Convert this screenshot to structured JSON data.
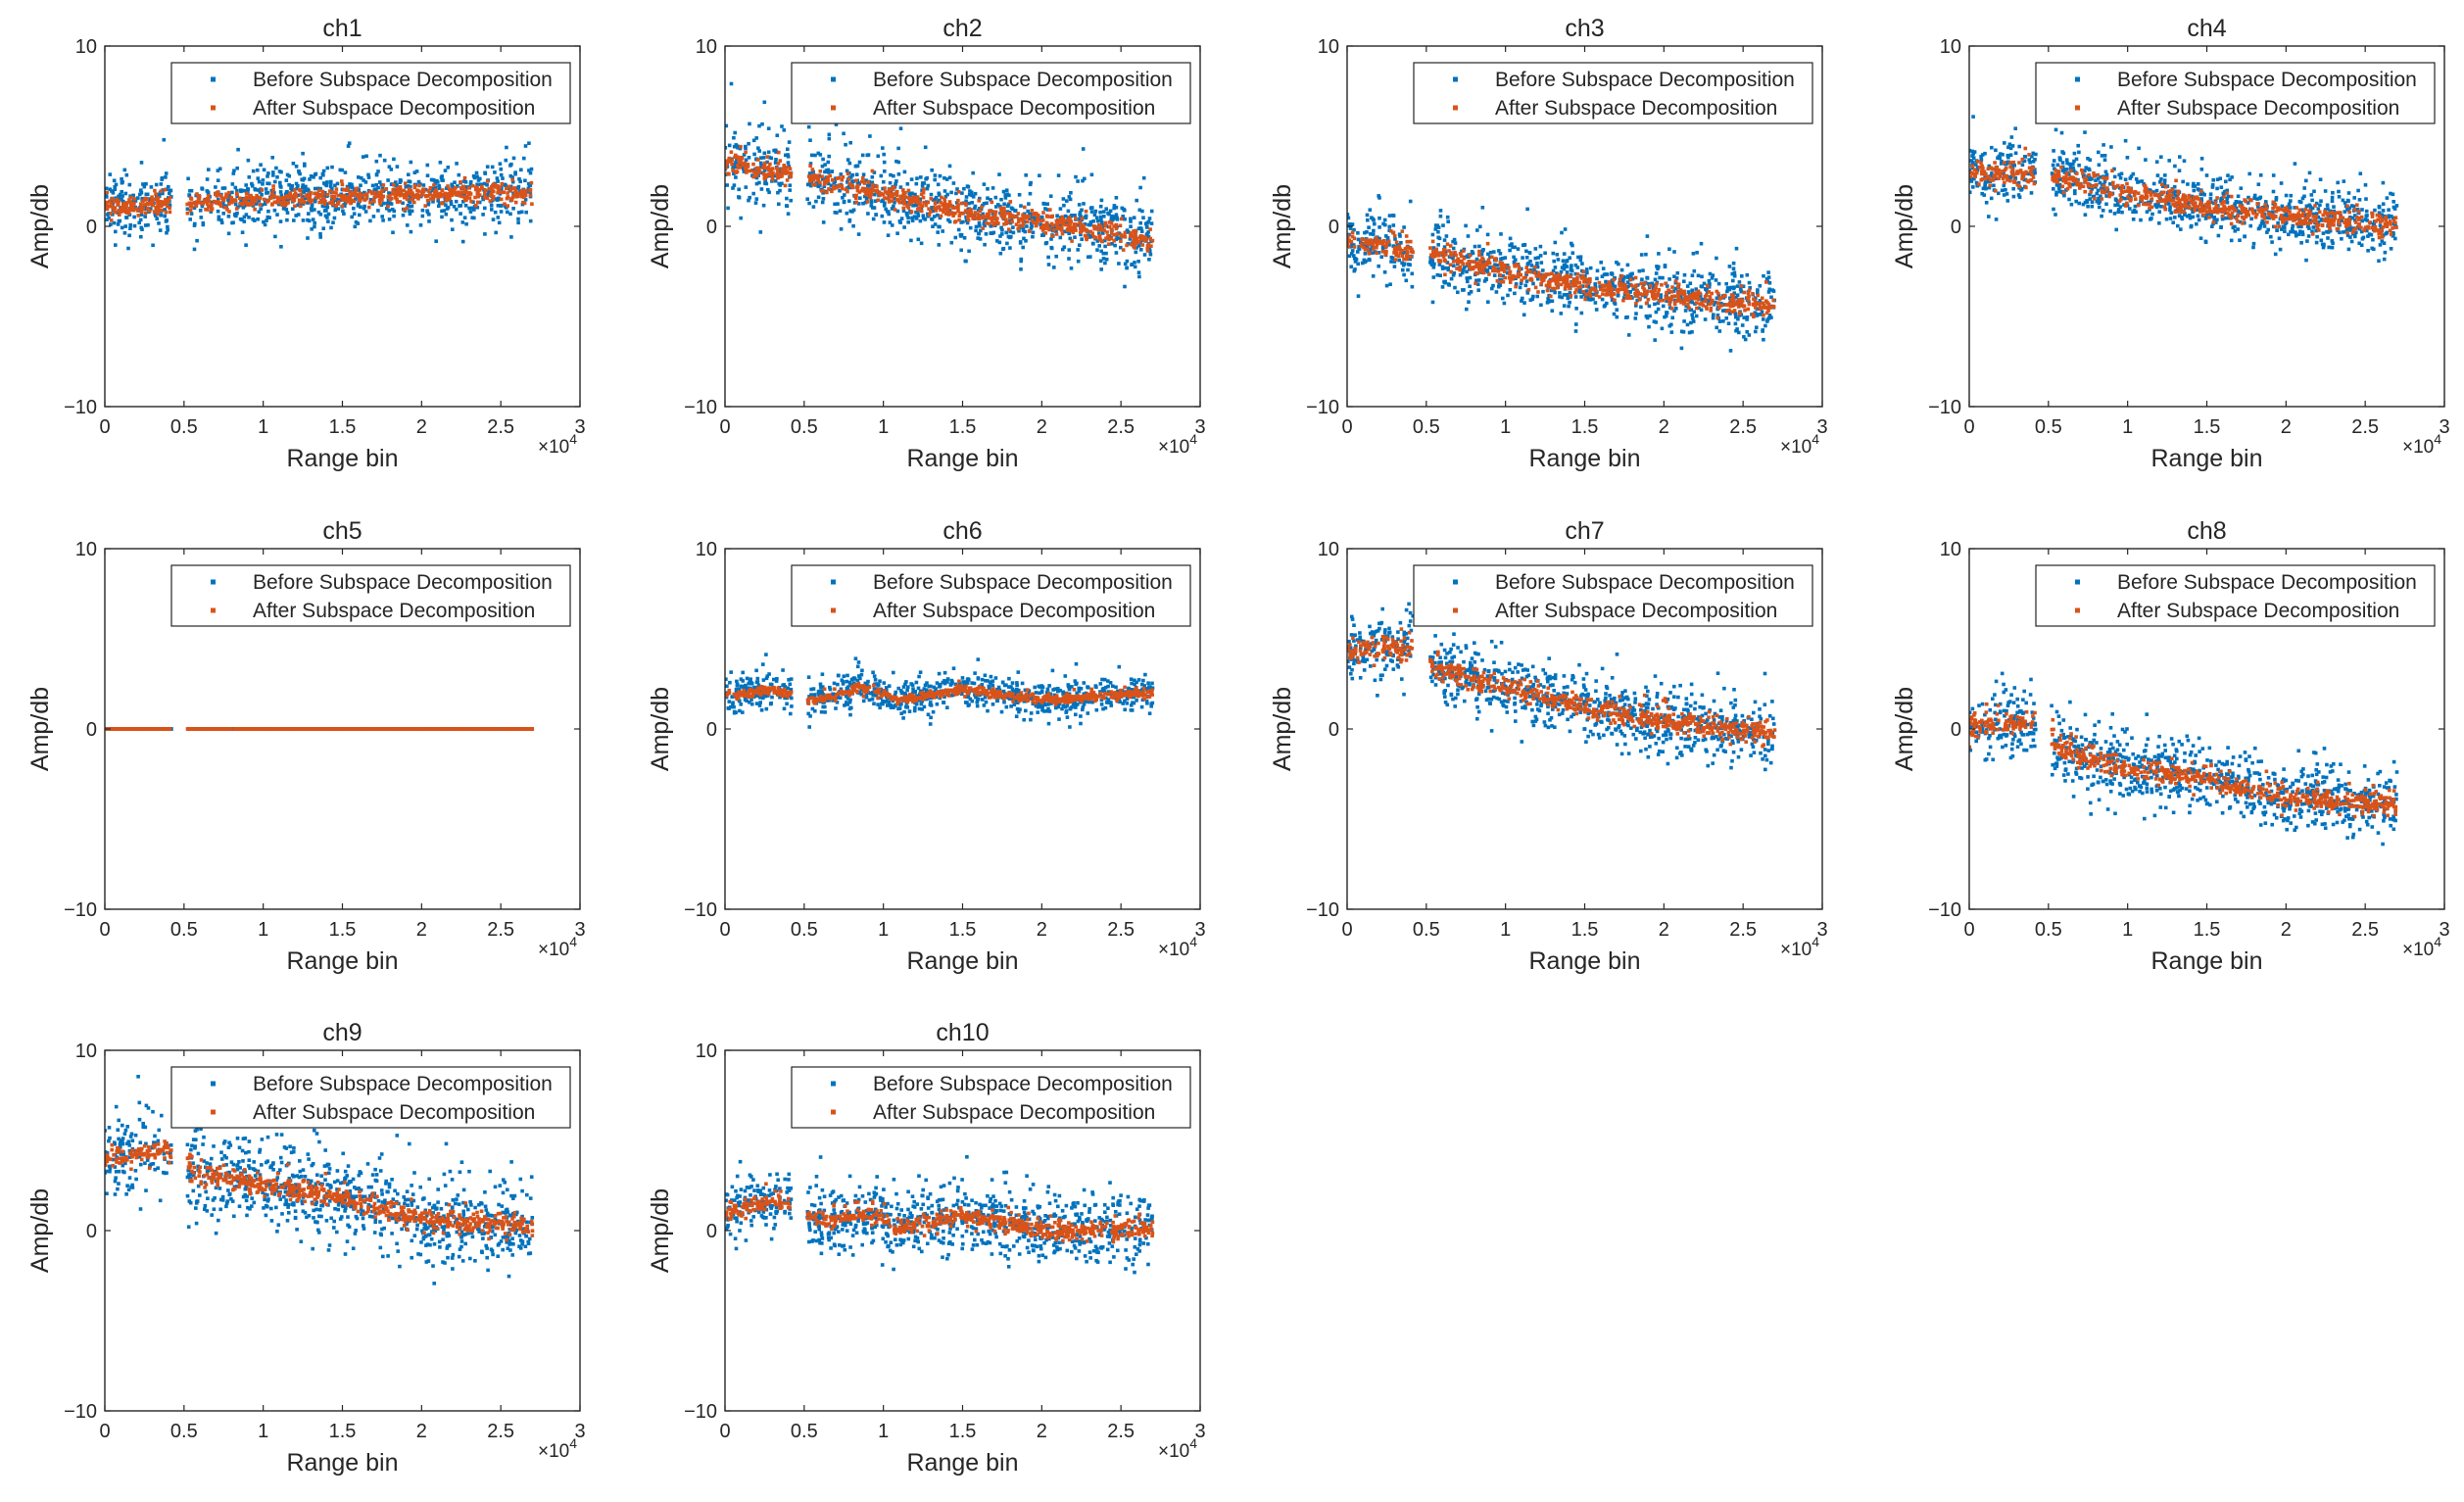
{
  "figure": {
    "background": "#ffffff",
    "axis_color": "#262626",
    "series_colors": [
      "#0072BD",
      "#D95319"
    ]
  },
  "chart_data": [
    {
      "type": "scatter",
      "title": "ch1",
      "xlabel": "Range bin",
      "ylabel": "Amp/db",
      "xlim": [
        0,
        30000
      ],
      "ylim": [
        -10,
        10
      ],
      "xticks": [
        0,
        5000,
        10000,
        15000,
        20000,
        25000,
        30000
      ],
      "xtick_labels": [
        "0",
        "0.5",
        "1",
        "1.5",
        "2",
        "2.5",
        "3"
      ],
      "x_exponent": "×10",
      "x_exponent_power": "4",
      "yticks": [
        -10,
        0,
        10
      ],
      "ytick_labels": [
        "−10",
        "0",
        "10"
      ],
      "grid": false,
      "legend_position": "top-right",
      "x_range": [
        0,
        27000
      ],
      "gap": [
        4200,
        5200
      ],
      "series": [
        {
          "name": "Before Subspace Decomposition",
          "trend": [
            [
              0,
              1.0
            ],
            [
              10000,
              1.5
            ],
            [
              20000,
              1.8
            ],
            [
              27000,
              1.8
            ]
          ],
          "spread": 1.0
        },
        {
          "name": "After Subspace Decomposition",
          "trend": [
            [
              0,
              1.0
            ],
            [
              10000,
              1.5
            ],
            [
              20000,
              1.8
            ],
            [
              27000,
              1.8
            ]
          ],
          "spread": 0.25
        }
      ]
    },
    {
      "type": "scatter",
      "title": "ch2",
      "xlabel": "Range bin",
      "ylabel": "Amp/db",
      "xlim": [
        0,
        30000
      ],
      "ylim": [
        -10,
        10
      ],
      "xticks": [
        0,
        5000,
        10000,
        15000,
        20000,
        25000,
        30000
      ],
      "xtick_labels": [
        "0",
        "0.5",
        "1",
        "1.5",
        "2",
        "2.5",
        "3"
      ],
      "x_exponent": "×10",
      "x_exponent_power": "4",
      "yticks": [
        -10,
        0,
        10
      ],
      "ytick_labels": [
        "−10",
        "0",
        "10"
      ],
      "grid": false,
      "legend_position": "top-right",
      "x_range": [
        0,
        27000
      ],
      "gap": [
        4200,
        5200
      ],
      "series": [
        {
          "name": "Before Subspace Decomposition",
          "trend": [
            [
              0,
              3.5
            ],
            [
              5000,
              2.8
            ],
            [
              10000,
              1.8
            ],
            [
              15000,
              0.8
            ],
            [
              20000,
              0.2
            ],
            [
              27000,
              -0.8
            ]
          ],
          "spread": 1.2
        },
        {
          "name": "After Subspace Decomposition",
          "trend": [
            [
              0,
              3.5
            ],
            [
              5000,
              2.8
            ],
            [
              10000,
              1.8
            ],
            [
              15000,
              0.8
            ],
            [
              20000,
              0.2
            ],
            [
              27000,
              -0.8
            ]
          ],
          "spread": 0.3
        }
      ]
    },
    {
      "type": "scatter",
      "title": "ch3",
      "xlabel": "Range bin",
      "ylabel": "Amp/db",
      "xlim": [
        0,
        30000
      ],
      "ylim": [
        -10,
        10
      ],
      "xticks": [
        0,
        5000,
        10000,
        15000,
        20000,
        25000,
        30000
      ],
      "xtick_labels": [
        "0",
        "0.5",
        "1",
        "1.5",
        "2",
        "2.5",
        "3"
      ],
      "x_exponent": "×10",
      "x_exponent_power": "4",
      "yticks": [
        -10,
        0,
        10
      ],
      "ytick_labels": [
        "−10",
        "0",
        "10"
      ],
      "grid": false,
      "legend_position": "top-right",
      "x_range": [
        0,
        27000
      ],
      "gap": [
        4200,
        5200
      ],
      "series": [
        {
          "name": "Before Subspace Decomposition",
          "trend": [
            [
              0,
              -0.8
            ],
            [
              5000,
              -1.5
            ],
            [
              10000,
              -2.5
            ],
            [
              15000,
              -3.3
            ],
            [
              20000,
              -3.8
            ],
            [
              27000,
              -4.5
            ]
          ],
          "spread": 1.1
        },
        {
          "name": "After Subspace Decomposition",
          "trend": [
            [
              0,
              -0.8
            ],
            [
              5000,
              -1.5
            ],
            [
              10000,
              -2.5
            ],
            [
              15000,
              -3.3
            ],
            [
              20000,
              -3.8
            ],
            [
              27000,
              -4.5
            ]
          ],
          "spread": 0.3
        }
      ]
    },
    {
      "type": "scatter",
      "title": "ch4",
      "xlabel": "Range bin",
      "ylabel": "Amp/db",
      "xlim": [
        0,
        30000
      ],
      "ylim": [
        -10,
        10
      ],
      "xticks": [
        0,
        5000,
        10000,
        15000,
        20000,
        25000,
        30000
      ],
      "xtick_labels": [
        "0",
        "0.5",
        "1",
        "1.5",
        "2",
        "2.5",
        "3"
      ],
      "x_exponent": "×10",
      "x_exponent_power": "4",
      "yticks": [
        -10,
        0,
        10
      ],
      "ytick_labels": [
        "−10",
        "0",
        "10"
      ],
      "grid": false,
      "legend_position": "top-right",
      "x_range": [
        0,
        27000
      ],
      "gap": [
        4200,
        5200
      ],
      "series": [
        {
          "name": "Before Subspace Decomposition",
          "trend": [
            [
              0,
              3.0
            ],
            [
              5000,
              2.8
            ],
            [
              10000,
              1.9
            ],
            [
              15000,
              1.1
            ],
            [
              20000,
              0.6
            ],
            [
              27000,
              0.0
            ]
          ],
          "spread": 1.0
        },
        {
          "name": "After Subspace Decomposition",
          "trend": [
            [
              0,
              3.0
            ],
            [
              5000,
              2.8
            ],
            [
              10000,
              1.9
            ],
            [
              15000,
              1.1
            ],
            [
              20000,
              0.6
            ],
            [
              27000,
              0.0
            ]
          ],
          "spread": 0.3
        }
      ]
    },
    {
      "type": "scatter",
      "title": "ch5",
      "xlabel": "Range bin",
      "ylabel": "Amp/db",
      "xlim": [
        0,
        30000
      ],
      "ylim": [
        -10,
        10
      ],
      "xticks": [
        0,
        5000,
        10000,
        15000,
        20000,
        25000,
        30000
      ],
      "xtick_labels": [
        "0",
        "0.5",
        "1",
        "1.5",
        "2",
        "2.5",
        "3"
      ],
      "x_exponent": "×10",
      "x_exponent_power": "4",
      "yticks": [
        -10,
        0,
        10
      ],
      "ytick_labels": [
        "−10",
        "0",
        "10"
      ],
      "grid": false,
      "legend_position": "top-right",
      "x_range": [
        0,
        27000
      ],
      "gap": [
        4200,
        5200
      ],
      "series": [
        {
          "name": "Before Subspace Decomposition",
          "trend": [
            [
              0,
              0
            ],
            [
              27000,
              0
            ]
          ],
          "spread": 0.0
        },
        {
          "name": "After Subspace Decomposition",
          "trend": [
            [
              0,
              0
            ],
            [
              27000,
              0
            ]
          ],
          "spread": 0.0
        }
      ]
    },
    {
      "type": "scatter",
      "title": "ch6",
      "xlabel": "Range bin",
      "ylabel": "Amp/db",
      "xlim": [
        0,
        30000
      ],
      "ylim": [
        -10,
        10
      ],
      "xticks": [
        0,
        5000,
        10000,
        15000,
        20000,
        25000,
        30000
      ],
      "xtick_labels": [
        "0",
        "0.5",
        "1",
        "1.5",
        "2",
        "2.5",
        "3"
      ],
      "x_exponent": "×10",
      "x_exponent_power": "4",
      "yticks": [
        -10,
        0,
        10
      ],
      "ytick_labels": [
        "−10",
        "0",
        "10"
      ],
      "grid": false,
      "legend_position": "top-right",
      "x_range": [
        0,
        27000
      ],
      "gap": [
        4200,
        5200
      ],
      "series": [
        {
          "name": "Before Subspace Decomposition",
          "trend": [
            [
              0,
              1.8
            ],
            [
              3000,
              2.2
            ],
            [
              5500,
              1.5
            ],
            [
              8500,
              2.3
            ],
            [
              11000,
              1.6
            ],
            [
              15000,
              2.2
            ],
            [
              20000,
              1.6
            ],
            [
              27000,
              2.0
            ]
          ],
          "spread": 0.55
        },
        {
          "name": "After Subspace Decomposition",
          "trend": [
            [
              0,
              1.8
            ],
            [
              3000,
              2.2
            ],
            [
              5500,
              1.5
            ],
            [
              8500,
              2.3
            ],
            [
              11000,
              1.6
            ],
            [
              15000,
              2.2
            ],
            [
              20000,
              1.6
            ],
            [
              27000,
              2.0
            ]
          ],
          "spread": 0.12
        }
      ]
    },
    {
      "type": "scatter",
      "title": "ch7",
      "xlabel": "Range bin",
      "ylabel": "Amp/db",
      "xlim": [
        0,
        30000
      ],
      "ylim": [
        -10,
        10
      ],
      "xticks": [
        0,
        5000,
        10000,
        15000,
        20000,
        25000,
        30000
      ],
      "xtick_labels": [
        "0",
        "0.5",
        "1",
        "1.5",
        "2",
        "2.5",
        "3"
      ],
      "x_exponent": "×10",
      "x_exponent_power": "4",
      "yticks": [
        -10,
        0,
        10
      ],
      "ytick_labels": [
        "−10",
        "0",
        "10"
      ],
      "grid": false,
      "legend_position": "top-right",
      "x_range": [
        0,
        27000
      ],
      "gap": [
        4200,
        5200
      ],
      "series": [
        {
          "name": "Before Subspace Decomposition",
          "trend": [
            [
              0,
              4.3
            ],
            [
              4000,
              4.5
            ],
            [
              6000,
              3.2
            ],
            [
              10000,
              2.3
            ],
            [
              15000,
              1.2
            ],
            [
              20000,
              0.4
            ],
            [
              27000,
              -0.3
            ]
          ],
          "spread": 1.0
        },
        {
          "name": "After Subspace Decomposition",
          "trend": [
            [
              0,
              4.3
            ],
            [
              4000,
              4.5
            ],
            [
              6000,
              3.2
            ],
            [
              10000,
              2.3
            ],
            [
              15000,
              1.2
            ],
            [
              20000,
              0.4
            ],
            [
              27000,
              -0.3
            ]
          ],
          "spread": 0.3
        }
      ]
    },
    {
      "type": "scatter",
      "title": "ch8",
      "xlabel": "Range bin",
      "ylabel": "Amp/db",
      "xlim": [
        0,
        30000
      ],
      "ylim": [
        -10,
        10
      ],
      "xticks": [
        0,
        5000,
        10000,
        15000,
        20000,
        25000,
        30000
      ],
      "xtick_labels": [
        "0",
        "0.5",
        "1",
        "1.5",
        "2",
        "2.5",
        "3"
      ],
      "x_exponent": "×10",
      "x_exponent_power": "4",
      "yticks": [
        -10,
        0,
        10
      ],
      "ytick_labels": [
        "−10",
        "0",
        "10"
      ],
      "grid": false,
      "legend_position": "top-right",
      "x_range": [
        0,
        27000
      ],
      "gap": [
        4200,
        5200
      ],
      "series": [
        {
          "name": "Before Subspace Decomposition",
          "trend": [
            [
              0,
              0.2
            ],
            [
              4000,
              0.3
            ],
            [
              6000,
              -1.3
            ],
            [
              10000,
              -2.3
            ],
            [
              15000,
              -2.8
            ],
            [
              20000,
              -3.8
            ],
            [
              27000,
              -4.2
            ]
          ],
          "spread": 1.0
        },
        {
          "name": "After Subspace Decomposition",
          "trend": [
            [
              0,
              0.2
            ],
            [
              4000,
              0.3
            ],
            [
              6000,
              -1.3
            ],
            [
              10000,
              -2.3
            ],
            [
              15000,
              -2.8
            ],
            [
              20000,
              -3.8
            ],
            [
              27000,
              -4.2
            ]
          ],
          "spread": 0.3
        }
      ]
    },
    {
      "type": "scatter",
      "title": "ch9",
      "xlabel": "Range bin",
      "ylabel": "Amp/db",
      "xlim": [
        0,
        30000
      ],
      "ylim": [
        -10,
        10
      ],
      "xticks": [
        0,
        5000,
        10000,
        15000,
        20000,
        25000,
        30000
      ],
      "xtick_labels": [
        "0",
        "0.5",
        "1",
        "1.5",
        "2",
        "2.5",
        "3"
      ],
      "x_exponent": "×10",
      "x_exponent_power": "4",
      "yticks": [
        -10,
        0,
        10
      ],
      "ytick_labels": [
        "−10",
        "0",
        "10"
      ],
      "grid": false,
      "legend_position": "top-right",
      "x_range": [
        0,
        27000
      ],
      "gap": [
        4200,
        5200
      ],
      "series": [
        {
          "name": "Before Subspace Decomposition",
          "trend": [
            [
              0,
              4.0
            ],
            [
              4000,
              4.4
            ],
            [
              6000,
              3.2
            ],
            [
              10000,
              2.5
            ],
            [
              15000,
              1.8
            ],
            [
              20000,
              0.6
            ],
            [
              27000,
              0.2
            ]
          ],
          "spread": 1.3
        },
        {
          "name": "After Subspace Decomposition",
          "trend": [
            [
              0,
              4.0
            ],
            [
              4000,
              4.4
            ],
            [
              6000,
              3.2
            ],
            [
              10000,
              2.5
            ],
            [
              15000,
              1.8
            ],
            [
              20000,
              0.6
            ],
            [
              27000,
              0.2
            ]
          ],
          "spread": 0.3
        }
      ]
    },
    {
      "type": "scatter",
      "title": "ch10",
      "xlabel": "Range bin",
      "ylabel": "Amp/db",
      "xlim": [
        0,
        30000
      ],
      "ylim": [
        -10,
        10
      ],
      "xticks": [
        0,
        5000,
        10000,
        15000,
        20000,
        25000,
        30000
      ],
      "xtick_labels": [
        "0",
        "0.5",
        "1",
        "1.5",
        "2",
        "2.5",
        "3"
      ],
      "x_exponent": "×10",
      "x_exponent_power": "4",
      "yticks": [
        -10,
        0,
        10
      ],
      "ytick_labels": [
        "−10",
        "0",
        "10"
      ],
      "grid": false,
      "legend_position": "top-right",
      "x_range": [
        0,
        27000
      ],
      "gap": [
        4200,
        5200
      ],
      "series": [
        {
          "name": "Before Subspace Decomposition",
          "trend": [
            [
              0,
              1.0
            ],
            [
              3000,
              1.7
            ],
            [
              6000,
              0.5
            ],
            [
              9000,
              0.9
            ],
            [
              11000,
              0.2
            ],
            [
              15000,
              0.8
            ],
            [
              20000,
              0.0
            ],
            [
              27000,
              0.1
            ]
          ],
          "spread": 1.0
        },
        {
          "name": "After Subspace Decomposition",
          "trend": [
            [
              0,
              1.0
            ],
            [
              3000,
              1.7
            ],
            [
              6000,
              0.5
            ],
            [
              9000,
              0.9
            ],
            [
              11000,
              0.2
            ],
            [
              15000,
              0.8
            ],
            [
              20000,
              0.0
            ],
            [
              27000,
              0.1
            ]
          ],
          "spread": 0.25
        }
      ]
    }
  ]
}
